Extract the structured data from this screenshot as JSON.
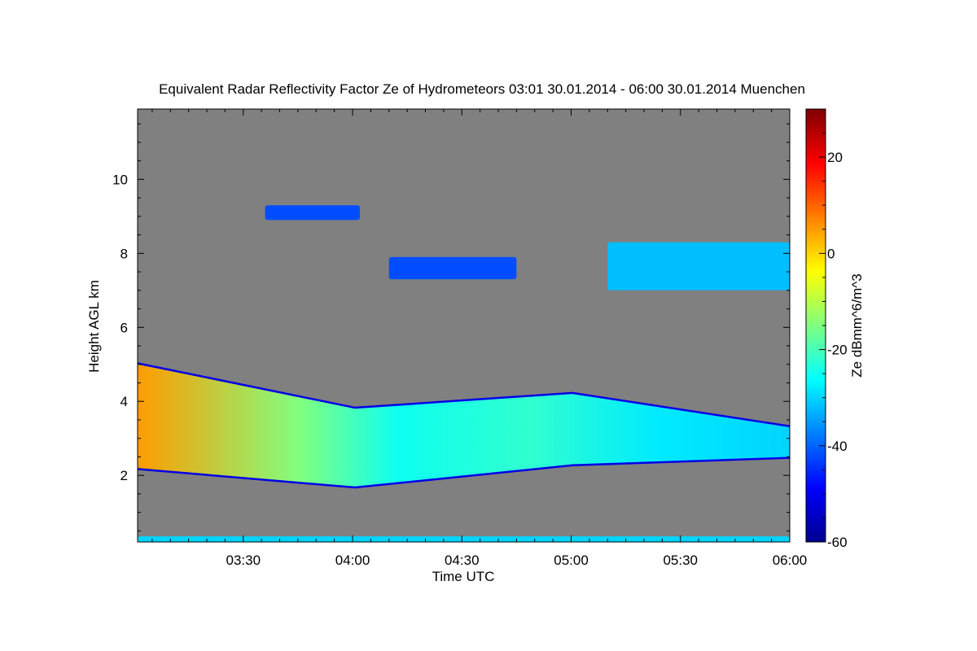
{
  "chart_data": {
    "type": "heatmap",
    "title": "Equivalent Radar Reflectivity Factor Ze of Hydrometeors   03:01 30.01.2014 - 06:00 30.01.2014 Muenchen",
    "xlabel": "Time UTC",
    "ylabel": "Height AGL km",
    "x_range_utc": [
      "03:01",
      "06:00"
    ],
    "x_ticks": [
      "03:30",
      "04:00",
      "04:30",
      "05:00",
      "05:30",
      "06:00"
    ],
    "y_range_km": [
      0.2,
      11.9
    ],
    "y_ticks": [
      2,
      4,
      6,
      8,
      10
    ],
    "background_color": "#808080",
    "colorbar": {
      "label": "Ze dBmm^6/m^3",
      "range": [
        -60,
        30
      ],
      "ticks": [
        -60,
        -40,
        -20,
        0,
        20
      ],
      "colormap": "jet"
    },
    "features": [
      {
        "layer": "low cloud/precip layer",
        "time_start": "03:01",
        "time_end": "06:00",
        "base_km": [
          2.2,
          1.7,
          2.3,
          2.5
        ],
        "top_km": [
          5.0,
          3.8,
          4.2,
          3.3
        ],
        "max_ze_dbz": 5
      },
      {
        "layer": "cirrus patch",
        "time_start": "03:36",
        "time_end": "04:02",
        "base_km": 8.9,
        "top_km": 9.3,
        "ze_dbz": -42
      },
      {
        "layer": "mid-level fragments",
        "time_start": "04:10",
        "time_end": "04:45",
        "base_km": 7.3,
        "top_km": 7.9,
        "ze_dbz": -42
      },
      {
        "layer": "upper cloud",
        "time_start": "05:10",
        "time_end": "06:00",
        "base_km": 7.0,
        "top_km": 8.3,
        "ze_dbz": -32
      },
      {
        "layer": "near-surface returns",
        "time_start": "03:01",
        "time_end": "06:00",
        "base_km": 0.2,
        "top_km": 0.35,
        "ze_dbz": -30
      }
    ]
  }
}
